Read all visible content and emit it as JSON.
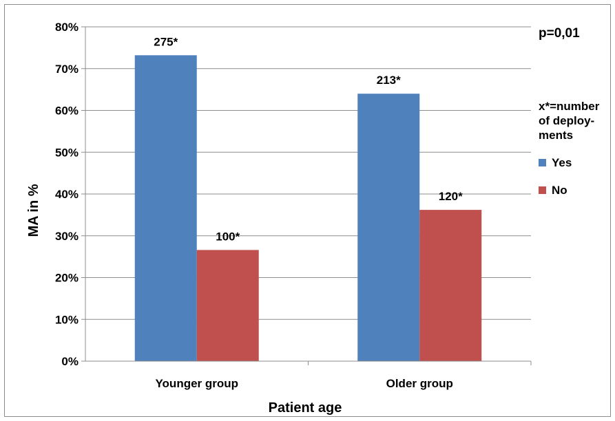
{
  "chart_data": {
    "type": "bar",
    "categories": [
      "Younger group",
      "Older group"
    ],
    "series": [
      {
        "name": "Yes",
        "values": [
          73.2,
          64.0
        ],
        "data_labels": [
          "275*",
          "213*"
        ],
        "color": "#4f81bd"
      },
      {
        "name": "No",
        "values": [
          26.6,
          36.2
        ],
        "data_labels": [
          "100*",
          "120*"
        ],
        "color": "#c0504d"
      }
    ],
    "ylim": [
      0,
      80
    ],
    "yticks": [
      "0%",
      "10%",
      "20%",
      "30%",
      "40%",
      "50%",
      "60%",
      "70%",
      "80%"
    ],
    "xlabel": "Patient age",
    "ylabel": "MA in %",
    "grid": true,
    "legend_position": "right",
    "annotations": {
      "p_value": "p=0,01",
      "note_lines": [
        "x*=number",
        "of deploy-",
        "ments"
      ]
    }
  }
}
